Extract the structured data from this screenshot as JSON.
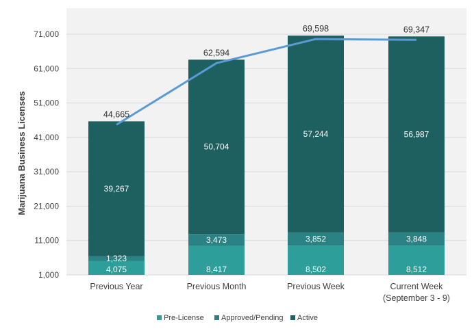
{
  "chart_data": {
    "type": "bar",
    "stacked": true,
    "title": "",
    "xlabel": "",
    "ylabel": "Marijuana Business Licenses",
    "ylim": [
      1000,
      76000
    ],
    "yticks": [
      "1,000",
      "11,000",
      "21,000",
      "31,000",
      "41,000",
      "51,000",
      "61,000",
      "71,000"
    ],
    "ytick_values": [
      1000,
      11000,
      21000,
      31000,
      41000,
      51000,
      61000,
      71000
    ],
    "grid": true,
    "legend_position": "bottom",
    "categories": [
      [
        "Previous Year"
      ],
      [
        "Previous Month"
      ],
      [
        "Previous Week"
      ],
      [
        "Current Week",
        "(September 3 - 9)"
      ]
    ],
    "series": [
      {
        "name": "Pre-License",
        "color": "#2e9e9a",
        "values": [
          4075,
          8417,
          8502,
          8512
        ],
        "labels": [
          "4,075",
          "8,417",
          "8,502",
          "8,512"
        ]
      },
      {
        "name": "Approved/Pending",
        "color": "#2a8284",
        "values": [
          1323,
          3473,
          3852,
          3848
        ],
        "labels": [
          "1,323",
          "3,473",
          "3,852",
          "3,848"
        ]
      },
      {
        "name": "Active",
        "color": "#1e5f5f",
        "values": [
          39267,
          50704,
          57244,
          56987
        ],
        "labels": [
          "39,267",
          "50,704",
          "57,244",
          "56,987"
        ]
      }
    ],
    "totals": {
      "values": [
        44665,
        62594,
        69598,
        69347
      ],
      "labels": [
        "44,665",
        "62,594",
        "69,598",
        "69,347"
      ],
      "line_color": "#5b9bd5"
    },
    "plot_background": "#f2f2f2",
    "grid_color": "#d9d9d9"
  }
}
